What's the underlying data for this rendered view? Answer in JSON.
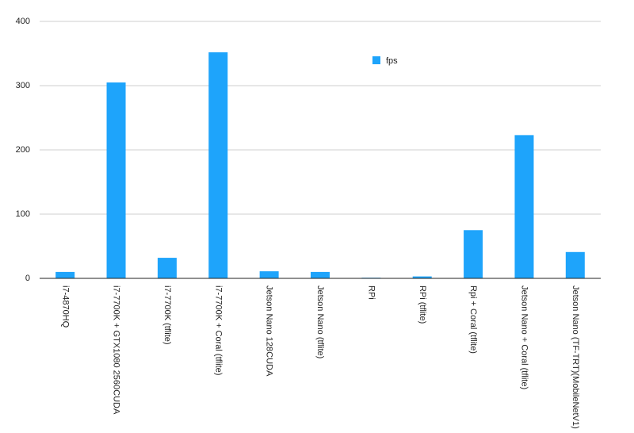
{
  "chart_data": {
    "type": "bar",
    "categories": [
      "i7-4870HQ",
      "i7-7700K + GTX1080 2560CUDA",
      "i7-7700K (tflite)",
      "i7-7700K + Coral (tflite)",
      "Jetson Nano 128CUDA",
      "Jetson Nano (tflite)",
      "RPi",
      "RPi (tflite)",
      "Rpi + Coral (tflite)",
      "Jetson Nano + Coral (tflite)",
      "Jetson Nano (TF-TRT)(MobileNetV1)"
    ],
    "series": [
      {
        "name": "fps",
        "color": "#1ea4fb",
        "values": [
          10,
          305,
          32,
          352,
          11,
          10,
          1,
          3,
          75,
          223,
          41
        ]
      }
    ],
    "ylim": [
      0,
      400
    ],
    "yticks": [
      0,
      100,
      200,
      300,
      400
    ],
    "grid": true,
    "legend": "top-right"
  }
}
